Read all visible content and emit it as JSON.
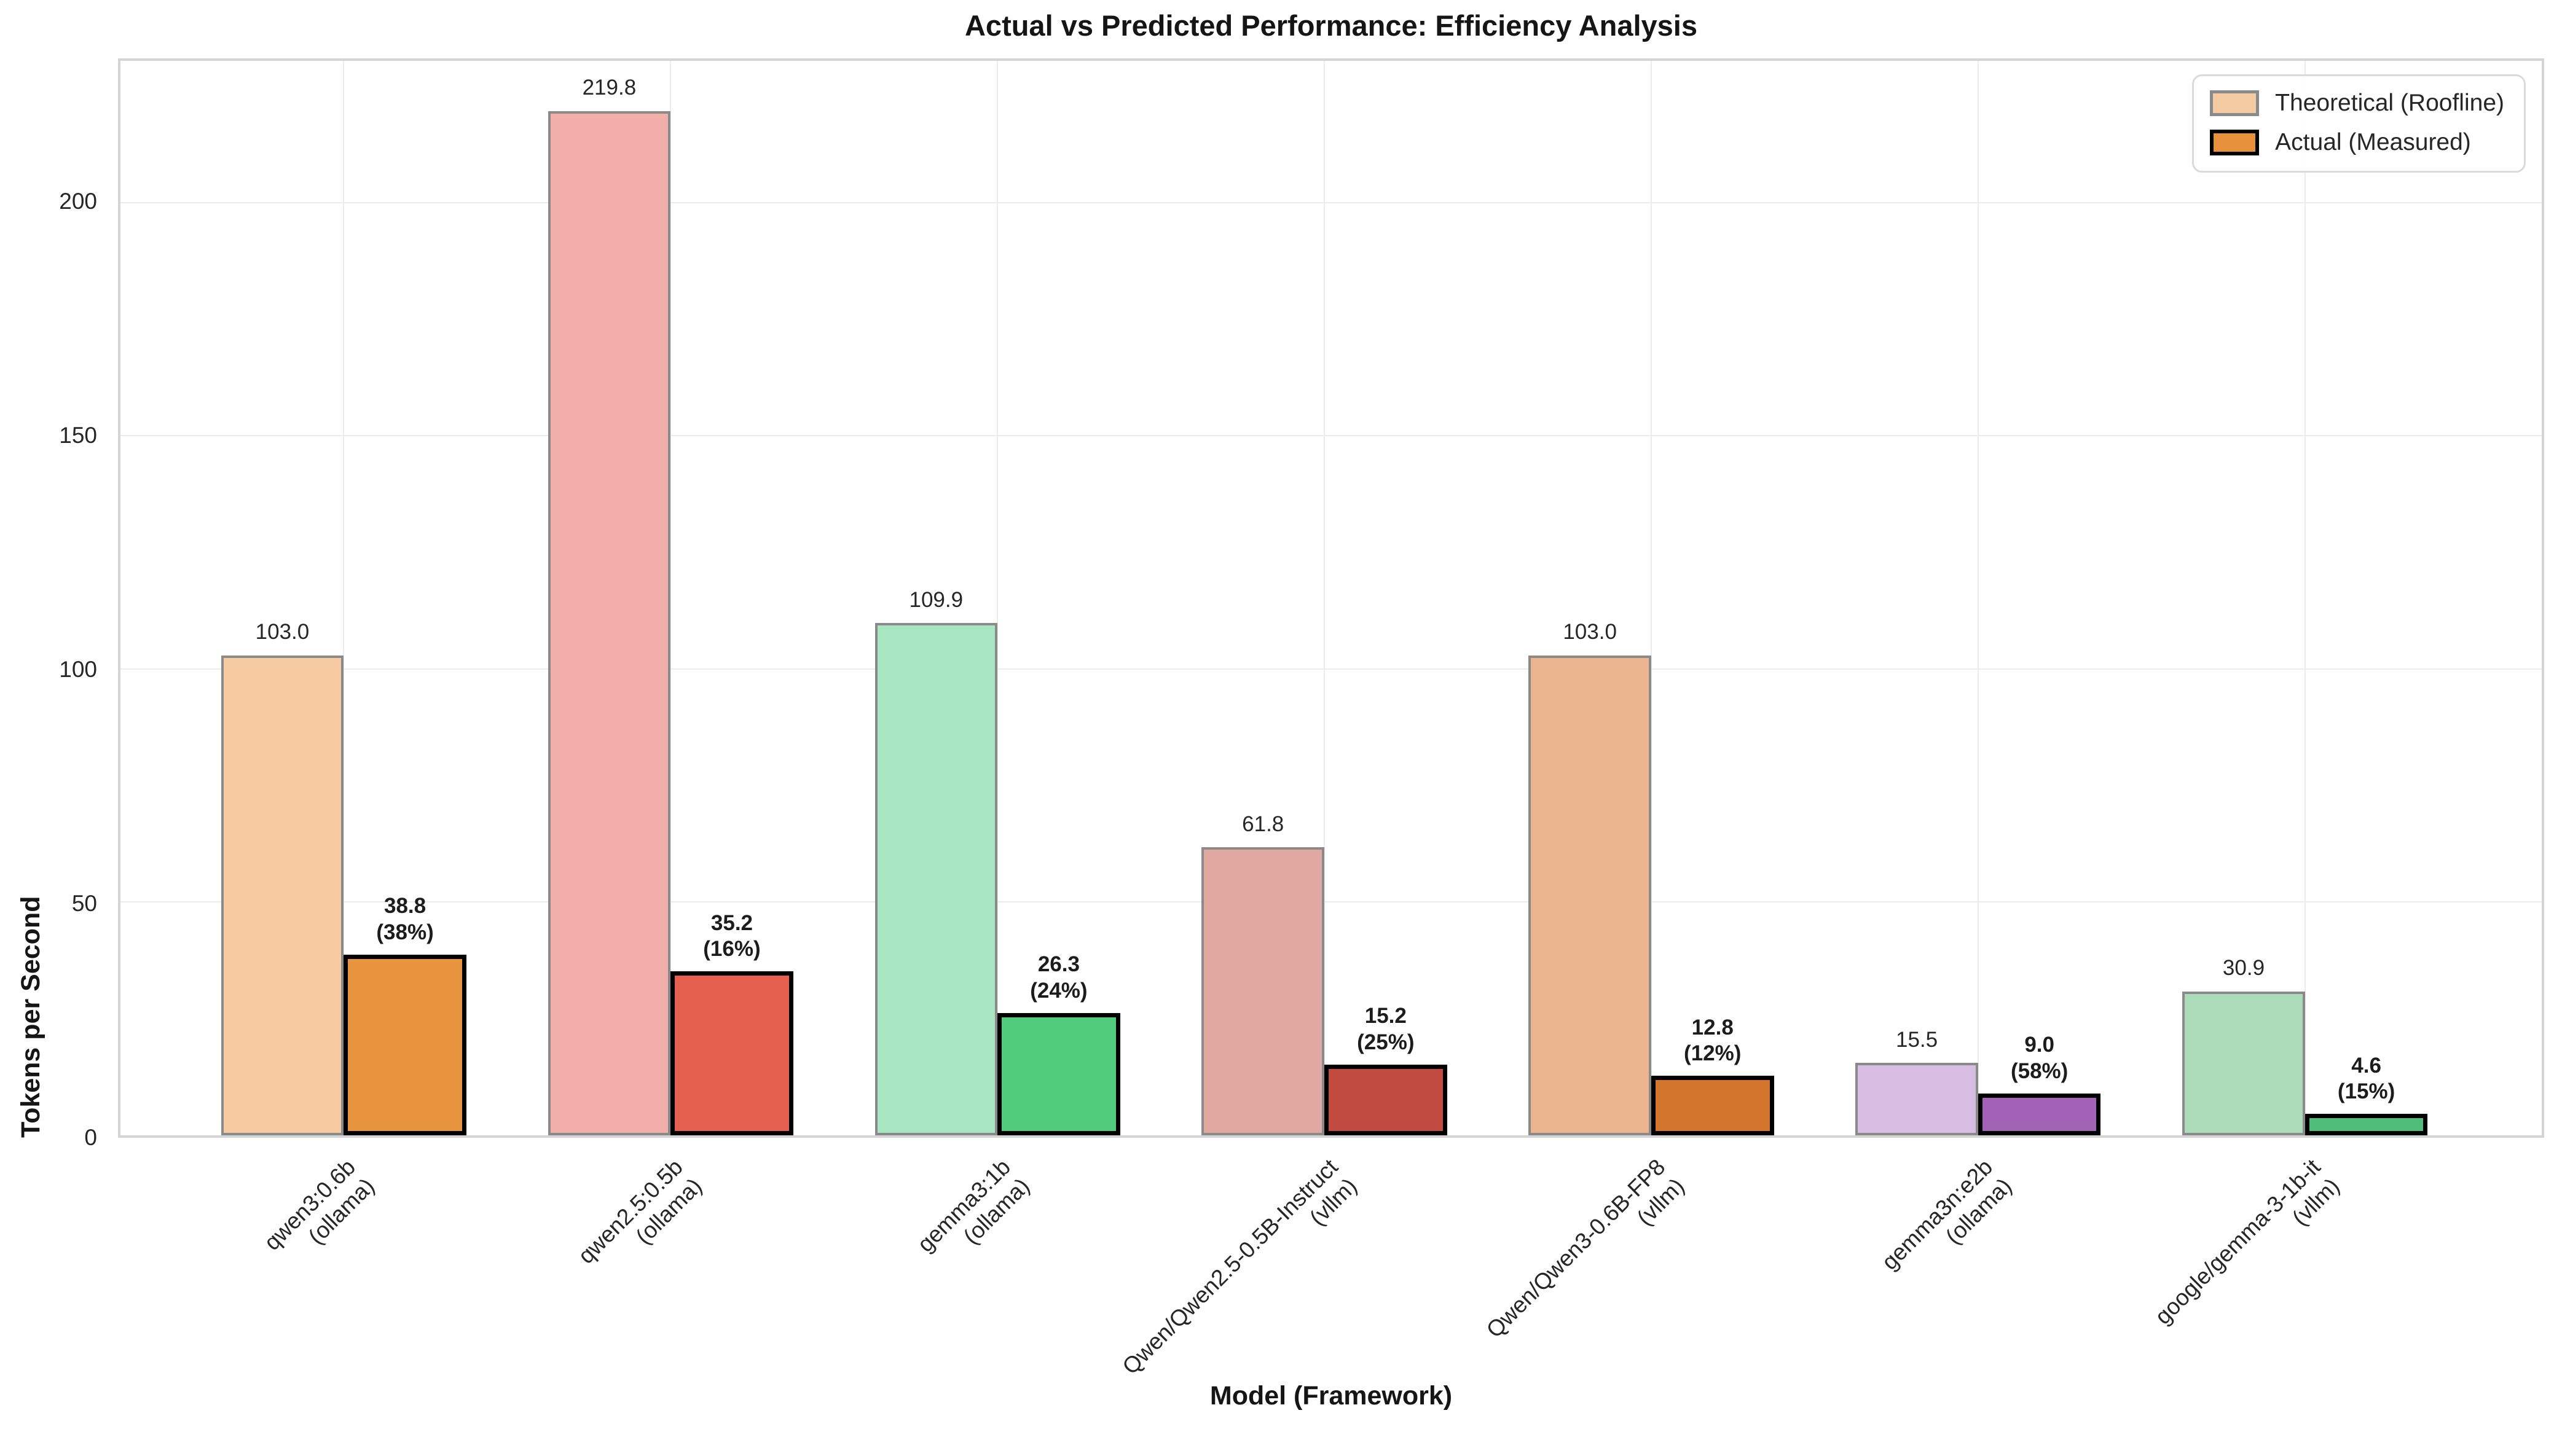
{
  "chart_data": {
    "type": "bar",
    "title": "Actual vs Predicted Performance: Efficiency Analysis",
    "xlabel": "Model (Framework)",
    "ylabel": "Tokens per Second",
    "ylim": [
      0,
      230.6
    ],
    "yticks": [
      0,
      50,
      100,
      150,
      200
    ],
    "grid": true,
    "legend_position": "upper right",
    "categories": [
      {
        "lines": [
          "qwen3:0.6b",
          "(ollama)"
        ]
      },
      {
        "lines": [
          "qwen2.5:0.5b",
          "(ollama)"
        ]
      },
      {
        "lines": [
          "gemma3:1b",
          "(ollama)"
        ]
      },
      {
        "lines": [
          "Qwen/Qwen2.5-0.5B-Instruct",
          "(vllm)"
        ]
      },
      {
        "lines": [
          "Qwen/Qwen3-0.6B-FP8",
          "(vllm)"
        ]
      },
      {
        "lines": [
          "gemma3n:e2b",
          "(ollama)"
        ]
      },
      {
        "lines": [
          "google/gemma-3-1b-it",
          "(vllm)"
        ]
      }
    ],
    "series": [
      {
        "name": "Theoretical (Roofline)",
        "values": [
          103.0,
          219.8,
          109.9,
          61.8,
          103.0,
          15.5,
          30.9
        ],
        "labels": [
          "103.0",
          "219.8",
          "109.9",
          "61.8",
          "103.0",
          "15.5",
          "30.9"
        ],
        "colors": [
          "#F6CBA2",
          "#F2AEA8",
          "#A8E6C2",
          "#DFA9A1",
          "#EBB68F",
          "#D7BDE1",
          "#ABDBB9"
        ],
        "edge_color": "#8A8A8A"
      },
      {
        "name": "Actual (Measured)",
        "values": [
          38.8,
          35.2,
          26.3,
          15.2,
          12.8,
          9.0,
          4.6
        ],
        "labels": [
          "38.8",
          "35.2",
          "26.3",
          "15.2",
          "12.8",
          "9.0",
          "4.6"
        ],
        "sublabels": [
          "(38%)",
          "(16%)",
          "(24%)",
          "(25%)",
          "(12%)",
          "(58%)",
          "(15%)"
        ],
        "colors": [
          "#E8943F",
          "#E5604E",
          "#50CC7B",
          "#C24B41",
          "#D4752E",
          "#A263B6",
          "#50BE7B"
        ],
        "edge_color": "#000000"
      }
    ],
    "legend_swatches": {
      "theoretical_fill": "#F5CBA3",
      "actual_fill": "#E8913C"
    }
  }
}
